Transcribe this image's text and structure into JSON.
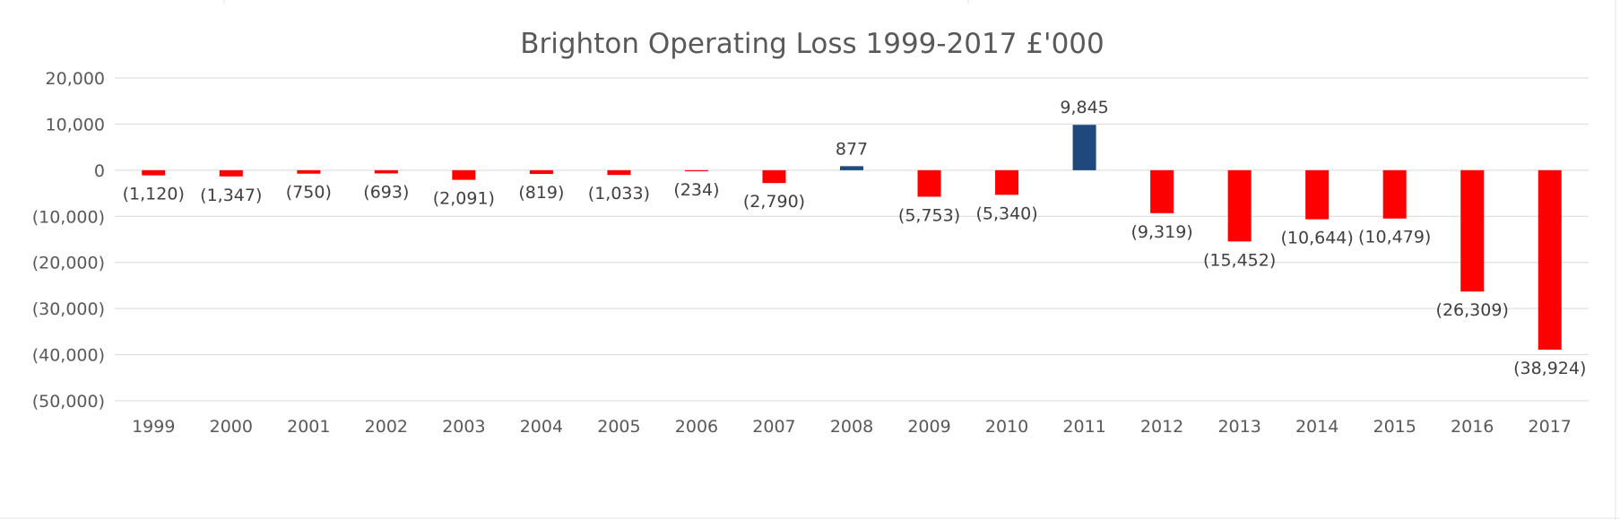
{
  "chart_data": {
    "type": "bar",
    "title": "Brighton Operating Loss 1999-2017 £'000",
    "xlabel": "",
    "ylabel": "",
    "categories": [
      "1999",
      "2000",
      "2001",
      "2002",
      "2003",
      "2004",
      "2005",
      "2006",
      "2007",
      "2008",
      "2009",
      "2010",
      "2011",
      "2012",
      "2013",
      "2014",
      "2015",
      "2016",
      "2017"
    ],
    "values": [
      -1120,
      -1347,
      -750,
      -693,
      -2091,
      -819,
      -1033,
      -234,
      -2790,
      877,
      -5753,
      -5340,
      9845,
      -9319,
      -15452,
      -10644,
      -10479,
      -26309,
      -38924
    ],
    "data_labels": [
      "(1,120)",
      "(1,347)",
      "(750)",
      "(693)",
      "(2,091)",
      "(819)",
      "(1,033)",
      "(234)",
      "(2,790)",
      "877",
      "(5,753)",
      "(5,340)",
      "9,845",
      "(9,319)",
      "(15,452)",
      "(10,644)",
      "(10,479)",
      "(26,309)",
      "(38,924)"
    ],
    "ylim": [
      -50000,
      20000
    ],
    "y_ticks": [
      20000,
      10000,
      0,
      -10000,
      -20000,
      -30000,
      -40000,
      -50000
    ],
    "y_tick_labels": [
      "20,000",
      "10,000",
      "0",
      "(10,000)",
      "(20,000)",
      "(30,000)",
      "(40,000)",
      "(50,000)"
    ],
    "grid": true,
    "legend": "none",
    "colors": {
      "negative": "#ff0000",
      "positive": "#1f497d",
      "gridline": "#d9d9d9",
      "text": "#595959"
    }
  }
}
